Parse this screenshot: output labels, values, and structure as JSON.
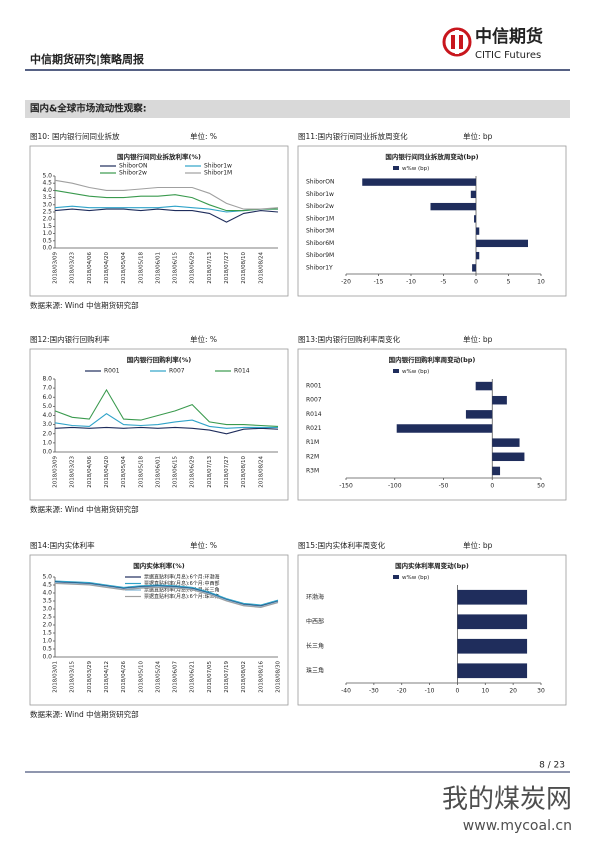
{
  "header": {
    "report": "中信期货研究|策略周报",
    "brand_cn": "中信期货",
    "brand_en": "CITIC Futures"
  },
  "section_title": "国内&全球市场流动性观察:",
  "footer": {
    "page": "8 / 23",
    "watermark_cn": "我的煤炭网",
    "watermark_url": "www.mycoal.cn"
  },
  "chart_data": [
    {
      "type": "line",
      "caption": "图10: 国内银行间同业拆放",
      "unit": "单位: %",
      "source": "数据来源: Wind 中信期货研究部",
      "title": "国内银行间同业拆放利率(%)",
      "categories": [
        "2018/03/09",
        "2018/03/23",
        "2018/04/06",
        "2018/04/20",
        "2018/05/04",
        "2018/05/18",
        "2018/06/01",
        "2018/06/15",
        "2018/06/29",
        "2018/07/13",
        "2018/07/27",
        "2018/08/10",
        "2018/08/24",
        null
      ],
      "series": [
        {
          "name": "ShiborON",
          "color": "#1f2d5c",
          "values": [
            2.6,
            2.7,
            2.6,
            2.7,
            2.7,
            2.6,
            2.7,
            2.6,
            2.6,
            2.4,
            1.8,
            2.4,
            2.6,
            2.5
          ]
        },
        {
          "name": "Shibor1w",
          "color": "#2fa3c9",
          "values": [
            2.8,
            2.9,
            2.8,
            2.8,
            2.8,
            2.8,
            2.8,
            2.9,
            2.8,
            2.7,
            2.5,
            2.6,
            2.7,
            2.7
          ]
        },
        {
          "name": "Shibor2w",
          "color": "#3a9a4e",
          "values": [
            4.0,
            3.8,
            3.6,
            3.5,
            3.5,
            3.6,
            3.6,
            3.7,
            3.5,
            3.0,
            2.6,
            2.6,
            2.7,
            2.7
          ]
        },
        {
          "name": "Shibor1M",
          "color": "#a0a0a0",
          "values": [
            4.7,
            4.5,
            4.2,
            4.0,
            4.0,
            4.1,
            4.2,
            4.2,
            4.2,
            3.8,
            3.1,
            2.7,
            2.7,
            2.8
          ]
        }
      ],
      "ylim": [
        0,
        5
      ],
      "yticks": [
        {
          "value": 0,
          "label": "0.0"
        },
        0.5,
        {
          "value": 1,
          "label": "1.0"
        },
        1.5,
        {
          "value": 2,
          "label": "2.0"
        },
        2.5,
        {
          "value": 3,
          "label": "3.0"
        },
        3.5,
        {
          "value": 4,
          "label": "4.0"
        },
        4.5,
        {
          "value": 5,
          "label": "5.0"
        }
      ]
    },
    {
      "type": "bar",
      "horizontal": true,
      "caption": "图11:国内银行间同业拆放周变化",
      "unit": "单位: bp",
      "title": "国内银行间同业拆放周变动(bp)",
      "categories": [
        "ShiborON",
        "Shibor1w",
        "Shibor2w",
        "Shibor1M",
        "Shibor3M",
        "Shibor6M",
        "Shibor9M",
        "Shibor1Y"
      ],
      "series": [
        {
          "name": "w%w (bp)",
          "color": "#1f2d5c",
          "values": [
            -17.5,
            -0.8,
            -7,
            -0.3,
            0.5,
            8,
            0.5,
            -0.6
          ]
        }
      ],
      "xlim": [
        -20,
        10
      ],
      "xticks": [
        -20,
        -15,
        -10,
        -5,
        0,
        5,
        10
      ]
    },
    {
      "type": "line",
      "caption": "图12:国内银行回购利率",
      "unit": "单位: %",
      "source": "数据来源: Wind 中信期货研究部",
      "title": "国内银行回购利率(%)",
      "categories": [
        "2018/03/09",
        "2018/03/23",
        "2018/04/06",
        "2018/04/20",
        "2018/05/04",
        "2018/05/18",
        "2018/06/01",
        "2018/06/15",
        "2018/06/29",
        "2018/07/13",
        "2018/07/27",
        "2018/08/10",
        "2018/08/24",
        null
      ],
      "series": [
        {
          "name": "R001",
          "color": "#1f2d5c",
          "values": [
            2.6,
            2.7,
            2.6,
            2.7,
            2.6,
            2.7,
            2.6,
            2.7,
            2.6,
            2.4,
            2.0,
            2.5,
            2.6,
            2.5
          ]
        },
        {
          "name": "R007",
          "color": "#2fa3c9",
          "values": [
            3.2,
            2.9,
            2.8,
            4.2,
            3.0,
            2.9,
            3.0,
            3.3,
            3.5,
            2.8,
            2.6,
            2.7,
            2.7,
            2.7
          ]
        },
        {
          "name": "R014",
          "color": "#3a9a4e",
          "values": [
            4.5,
            3.8,
            3.6,
            6.8,
            3.6,
            3.5,
            4.0,
            4.5,
            5.2,
            3.3,
            3.0,
            3.0,
            2.9,
            2.8
          ]
        }
      ],
      "ylim": [
        0,
        8
      ],
      "yticks": [
        {
          "value": 0,
          "label": "0.0"
        },
        {
          "value": 1,
          "label": "1.0"
        },
        {
          "value": 2,
          "label": "2.0"
        },
        {
          "value": 3,
          "label": "3.0"
        },
        {
          "value": 4,
          "label": "4.0"
        },
        {
          "value": 5,
          "label": "5.0"
        },
        {
          "value": 6,
          "label": "6.0"
        },
        {
          "value": 7,
          "label": "7.0"
        },
        {
          "value": 8,
          "label": "8.0"
        }
      ]
    },
    {
      "type": "bar",
      "horizontal": true,
      "caption": "图13:国内银行回购利率周变化",
      "unit": "单位: bp",
      "title": "国内银行回购利率周变动(bp)",
      "categories": [
        "R001",
        "R007",
        "R014",
        "R021",
        "R1M",
        "R2M",
        "R3M"
      ],
      "series": [
        {
          "name": "w%w (bp)",
          "color": "#1f2d5c",
          "values": [
            -17,
            15,
            -27,
            -98,
            28,
            33,
            8
          ]
        }
      ],
      "xlim": [
        -150,
        50
      ],
      "xticks": [
        -150,
        -100,
        -50,
        0,
        50
      ]
    },
    {
      "type": "line",
      "caption": "图14:国内实体利率",
      "unit": "单位: %",
      "source": "数据来源: Wind 中信期货研究部",
      "title": "国内实体利率(%)",
      "categories": [
        "2018/03/01",
        "2018/03/15",
        "2018/03/29",
        "2018/04/12",
        "2018/04/26",
        "2018/05/10",
        "2018/05/24",
        "2018/06/07",
        "2018/06/21",
        "2018/07/05",
        "2018/07/19",
        "2018/08/02",
        "2018/08/16",
        "2018/08/30"
      ],
      "series": [
        {
          "name": "票据直贴利率(月息):6个月:环渤海",
          "color": "#1f2d5c",
          "values": [
            4.7,
            4.65,
            4.6,
            4.45,
            4.3,
            4.4,
            4.45,
            4.4,
            4.3,
            4.0,
            3.6,
            3.3,
            3.2,
            3.5
          ]
        },
        {
          "name": "票据直贴利率(月息):6个月:中西部",
          "color": "#2fa3c9",
          "values": [
            4.75,
            4.7,
            4.65,
            4.5,
            4.35,
            4.45,
            4.5,
            4.45,
            4.35,
            4.05,
            3.65,
            3.35,
            3.25,
            3.55
          ]
        },
        {
          "name": "票据直贴利率(月息):6个月:长三角",
          "color": "#7fb3d5",
          "values": [
            4.65,
            4.6,
            4.55,
            4.4,
            4.25,
            4.35,
            4.4,
            4.35,
            4.25,
            3.95,
            3.55,
            3.25,
            3.15,
            3.45
          ]
        },
        {
          "name": "票据直贴利率(月息):6个月:珠三角",
          "color": "#a0a0a0",
          "values": [
            4.6,
            4.55,
            4.5,
            4.35,
            4.2,
            4.3,
            4.35,
            4.3,
            4.2,
            3.9,
            3.5,
            3.2,
            3.1,
            3.4
          ]
        }
      ],
      "ylim": [
        0,
        5
      ],
      "yticks": [
        {
          "value": 0,
          "label": "0.0"
        },
        0.5,
        {
          "value": 1,
          "label": "1.0"
        },
        1.5,
        {
          "value": 2,
          "label": "2.0"
        },
        2.5,
        {
          "value": 3,
          "label": "3.0"
        },
        3.5,
        {
          "value": 4,
          "label": "4.0"
        },
        4.5,
        {
          "value": 5,
          "label": "5.0"
        }
      ]
    },
    {
      "type": "bar",
      "horizontal": true,
      "caption": "图15:国内实体利率周变化",
      "unit": "单位: bp",
      "title": "国内实体利率周变动(bp)",
      "categories": [
        "环渤海",
        "中西部",
        "长三角",
        "珠三角"
      ],
      "series": [
        {
          "name": "w%w (bp)",
          "color": "#1f2d5c",
          "values": [
            25,
            25,
            25,
            25
          ]
        }
      ],
      "xlim": [
        -40,
        30
      ],
      "xticks": [
        -40,
        -30,
        -20,
        -10,
        0,
        10,
        20,
        30
      ]
    }
  ]
}
